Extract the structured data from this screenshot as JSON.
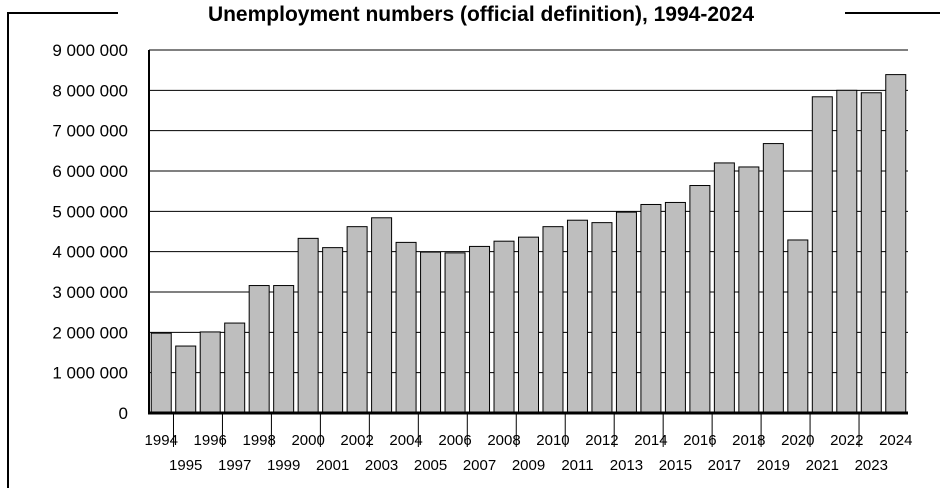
{
  "chart_data": {
    "type": "bar",
    "title": "Unemployment numbers (official definition), 1994-2024",
    "xlabel": "",
    "ylabel": "",
    "ylim": [
      0,
      9000000
    ],
    "yticks": [
      0,
      1000000,
      2000000,
      3000000,
      4000000,
      5000000,
      6000000,
      7000000,
      8000000,
      9000000
    ],
    "ytick_labels": [
      "0",
      "1 000 000",
      "2 000 000",
      "3 000 000",
      "4 000 000",
      "5 000 000",
      "6 000 000",
      "7 000 000",
      "8 000 000",
      "9 000 000"
    ],
    "grid": true,
    "legend": "none",
    "bar_color": "#bebebe",
    "categories": [
      "1994",
      "1995",
      "1996",
      "1997",
      "1998",
      "1999",
      "2000",
      "2001",
      "2002",
      "2003",
      "2004",
      "2005",
      "2006",
      "2007",
      "2008",
      "2009",
      "2010",
      "2011",
      "2012",
      "2013",
      "2014",
      "2015",
      "2016",
      "2017",
      "2018",
      "2019",
      "2020",
      "2021",
      "2022",
      "2023",
      "2024"
    ],
    "values": [
      1980000,
      1660000,
      2010000,
      2230000,
      3160000,
      3160000,
      4330000,
      4100000,
      4620000,
      4840000,
      4230000,
      3990000,
      3970000,
      4130000,
      4260000,
      4360000,
      4620000,
      4780000,
      4720000,
      4980000,
      5170000,
      5220000,
      5640000,
      6200000,
      6100000,
      6680000,
      4290000,
      7840000,
      8000000,
      7940000,
      8390000
    ]
  }
}
